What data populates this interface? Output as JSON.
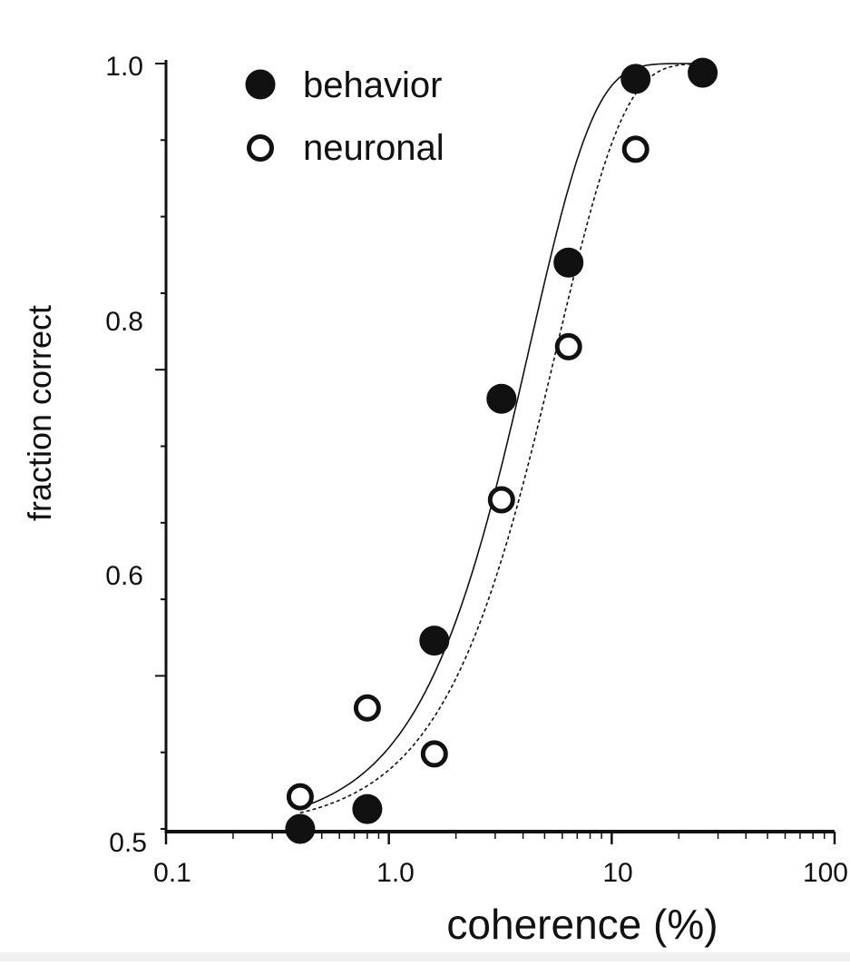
{
  "chart_data": {
    "type": "scatter",
    "xscale": "log",
    "xlim": [
      0.1,
      100
    ],
    "ylim": [
      0.5,
      1.0
    ],
    "xlabel": "coherence (%)",
    "ylabel": "fraction correct",
    "x_ticks": [
      "0.1",
      "1.0",
      "10",
      "100"
    ],
    "y_ticks": [
      "0.5",
      "0.6",
      "0.8",
      "1.0"
    ],
    "grid": false,
    "legend_position": "top-left",
    "series": [
      {
        "name": "behavior",
        "marker": "filled-circle",
        "x": [
          0.4,
          0.8,
          1.6,
          3.2,
          6.4,
          12.8,
          25.6
        ],
        "y": [
          0.5,
          0.513,
          0.623,
          0.781,
          0.87,
          0.99,
          0.994
        ]
      },
      {
        "name": "neuronal",
        "marker": "open-circle",
        "x": [
          0.4,
          0.8,
          1.6,
          3.2,
          6.4,
          12.8
        ],
        "y": [
          0.521,
          0.579,
          0.549,
          0.715,
          0.815,
          0.944
        ]
      }
    ],
    "fits": [
      {
        "series": "behavior",
        "style": "solid",
        "alpha": 4.3,
        "beta": 1.5
      },
      {
        "series": "neuronal",
        "style": "dashed",
        "alpha": 5.7,
        "beta": 1.45
      }
    ]
  },
  "colors": {
    "ink": "#111111",
    "background": "#ffffff"
  }
}
